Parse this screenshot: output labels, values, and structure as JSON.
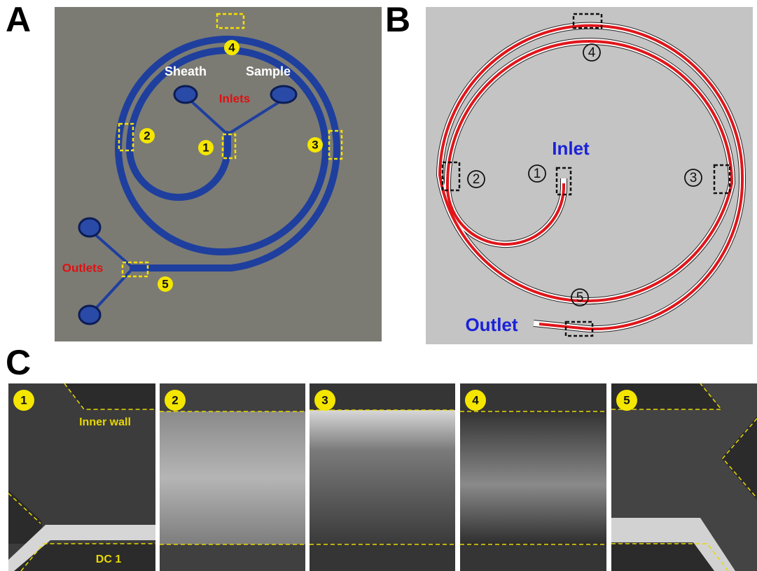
{
  "panels": {
    "a": {
      "label": "A",
      "markers": [
        "1",
        "2",
        "3",
        "4",
        "5"
      ],
      "inlet_names": [
        "Sheath",
        "Sample"
      ],
      "inlets_label": "Inlets",
      "outlets_label": "Outlets"
    },
    "b": {
      "label": "B",
      "markers": [
        "1",
        "2",
        "3",
        "4",
        "5"
      ],
      "inlet_label": "Inlet",
      "outlet_label": "Outlet"
    },
    "c": {
      "label": "C",
      "markers": [
        "1",
        "2",
        "3",
        "4",
        "5"
      ],
      "inner_wall_label": "Inner wall",
      "dc_label": "DC 1"
    }
  }
}
